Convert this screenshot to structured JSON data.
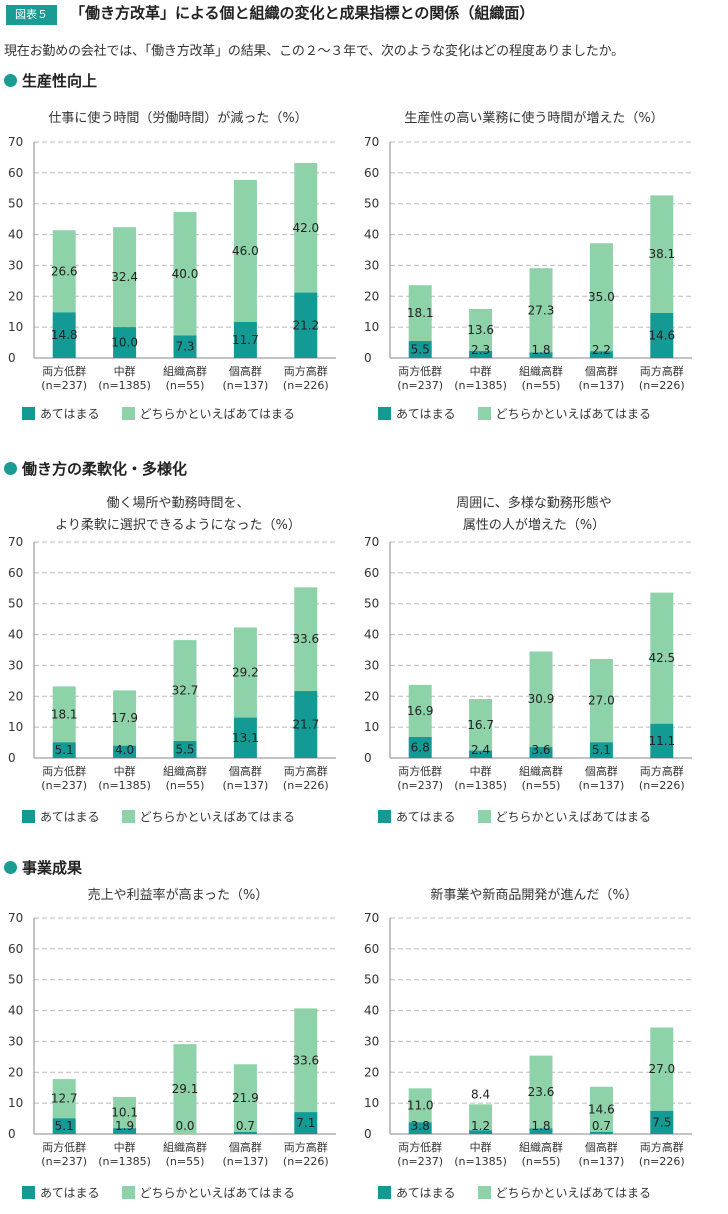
{
  "header": {
    "figure_label": "図表５",
    "title": "「働き方改革」による個と組織の変化と成果指標との関係（組織面）",
    "intro": "現在お勤めの会社では、「働き方改革」の結果、この２～３年で、次のような変化はどの程度ありましたか。"
  },
  "sections": [
    {
      "title": "生産性向上"
    },
    {
      "title": "働き方の柔軟化・多様化"
    },
    {
      "title": "事業成果"
    }
  ],
  "legend": {
    "strong": "あてはまる",
    "weak": "どちらかといえばあてはまる"
  },
  "colors": {
    "strong": "#139a95",
    "weak": "#8dd2a8",
    "accent": "#1a9b93",
    "grid": "#bbbbbb"
  },
  "chart_data": [
    {
      "type": "bar",
      "stacked": true,
      "title_lines": [
        "仕事に使う時間（労働時間）が減った（%）"
      ],
      "categories": [
        "両方低群",
        "中群",
        "組織高群",
        "個高群",
        "両方高群"
      ],
      "category_n": [
        "(n=237)",
        "(n=1385)",
        "(n=55)",
        "(n=137)",
        "(n=226)"
      ],
      "ylim": [
        0,
        70
      ],
      "yticks": [
        0,
        10,
        20,
        30,
        40,
        50,
        60,
        70
      ],
      "grid": true,
      "series": [
        {
          "name": "あてはまる",
          "values": [
            14.8,
            10.0,
            7.3,
            11.7,
            21.2
          ]
        },
        {
          "name": "どちらかといえばあてはまる",
          "values": [
            26.6,
            32.4,
            40.0,
            46.0,
            42.0
          ]
        }
      ],
      "value_labels": [
        [
          "14.8",
          "10.0",
          "7.3",
          "11.7",
          "21.2"
        ],
        [
          "26.6",
          "32.4",
          "40.0",
          "46.0",
          "42.0"
        ]
      ]
    },
    {
      "type": "bar",
      "stacked": true,
      "title_lines": [
        "生産性の高い業務に使う時間が増えた（%）"
      ],
      "categories": [
        "両方低群",
        "中群",
        "組織高群",
        "個高群",
        "両方高群"
      ],
      "category_n": [
        "(n=237)",
        "(n=1385)",
        "(n=55)",
        "(n=137)",
        "(n=226)"
      ],
      "ylim": [
        0,
        70
      ],
      "yticks": [
        0,
        10,
        20,
        30,
        40,
        50,
        60,
        70
      ],
      "grid": true,
      "series": [
        {
          "name": "あてはまる",
          "values": [
            5.5,
            2.3,
            1.8,
            2.2,
            14.6
          ]
        },
        {
          "name": "どちらかといえばあてはまる",
          "values": [
            18.1,
            13.6,
            27.3,
            35.0,
            38.1
          ]
        }
      ],
      "value_labels": [
        [
          "5.5",
          "2.3",
          "1.8",
          "2.2",
          "14.6"
        ],
        [
          "18.1",
          "13.6",
          "27.3",
          "35.0",
          "38.1"
        ]
      ]
    },
    {
      "type": "bar",
      "stacked": true,
      "title_lines": [
        "働く場所や勤務時間を、",
        "より柔軟に選択できるようになった（%）"
      ],
      "categories": [
        "両方低群",
        "中群",
        "組織高群",
        "個高群",
        "両方高群"
      ],
      "category_n": [
        "(n=237)",
        "(n=1385)",
        "(n=55)",
        "(n=137)",
        "(n=226)"
      ],
      "ylim": [
        0,
        70
      ],
      "yticks": [
        0,
        10,
        20,
        30,
        40,
        50,
        60,
        70
      ],
      "grid": true,
      "series": [
        {
          "name": "あてはまる",
          "values": [
            5.1,
            4.0,
            5.5,
            13.1,
            21.7
          ]
        },
        {
          "name": "どちらかといえばあてはまる",
          "values": [
            18.1,
            17.9,
            32.7,
            29.2,
            33.6
          ]
        }
      ],
      "value_labels": [
        [
          "5.1",
          "4.0",
          "5.5",
          "13.1",
          "21.7"
        ],
        [
          "18.1",
          "17.9",
          "32.7",
          "29.2",
          "33.6"
        ]
      ]
    },
    {
      "type": "bar",
      "stacked": true,
      "title_lines": [
        "周囲に、多様な勤務形態や",
        "属性の人が増えた（%）"
      ],
      "categories": [
        "両方低群",
        "中群",
        "組織高群",
        "個高群",
        "両方高群"
      ],
      "category_n": [
        "(n=237)",
        "(n=1385)",
        "(n=55)",
        "(n=137)",
        "(n=226)"
      ],
      "ylim": [
        0,
        70
      ],
      "yticks": [
        0,
        10,
        20,
        30,
        40,
        50,
        60,
        70
      ],
      "grid": true,
      "series": [
        {
          "name": "あてはまる",
          "values": [
            6.8,
            2.4,
            3.6,
            5.1,
            11.1
          ]
        },
        {
          "name": "どちらかといえばあてはまる",
          "values": [
            16.9,
            16.7,
            30.9,
            27.0,
            42.5
          ]
        }
      ],
      "value_labels": [
        [
          "6.8",
          "2.4",
          "3.6",
          "5.1",
          "11.1"
        ],
        [
          "16.9",
          "16.7",
          "30.9",
          "27.0",
          "42.5"
        ]
      ]
    },
    {
      "type": "bar",
      "stacked": true,
      "title_lines": [
        "売上や利益率が高まった（%）"
      ],
      "categories": [
        "両方低群",
        "中群",
        "組織高群",
        "個高群",
        "両方高群"
      ],
      "category_n": [
        "(n=237)",
        "(n=1385)",
        "(n=55)",
        "(n=137)",
        "(n=226)"
      ],
      "ylim": [
        0,
        70
      ],
      "yticks": [
        0,
        10,
        20,
        30,
        40,
        50,
        60,
        70
      ],
      "grid": true,
      "series": [
        {
          "name": "あてはまる",
          "values": [
            5.1,
            1.9,
            0.0,
            0.7,
            7.1
          ]
        },
        {
          "name": "どちらかといえばあてはまる",
          "values": [
            12.7,
            10.1,
            29.1,
            21.9,
            33.6
          ]
        }
      ],
      "value_labels": [
        [
          "5.1",
          "1.9",
          "0.0",
          "0.7",
          "7.1"
        ],
        [
          "12.7",
          "10.1",
          "29.1",
          "21.9",
          "33.6"
        ]
      ]
    },
    {
      "type": "bar",
      "stacked": true,
      "title_lines": [
        "新事業や新商品開発が進んだ（%）"
      ],
      "categories": [
        "両方低群",
        "中群",
        "組織高群",
        "個高群",
        "両方高群"
      ],
      "category_n": [
        "(n=237)",
        "(n=1385)",
        "(n=55)",
        "(n=137)",
        "(n=226)"
      ],
      "ylim": [
        0,
        70
      ],
      "yticks": [
        0,
        10,
        20,
        30,
        40,
        50,
        60,
        70
      ],
      "grid": true,
      "series": [
        {
          "name": "あてはまる",
          "values": [
            3.8,
            1.2,
            1.8,
            0.7,
            7.5
          ]
        },
        {
          "name": "どちらかといえばあてはまる",
          "values": [
            11.0,
            8.4,
            23.6,
            14.6,
            27.0
          ]
        }
      ],
      "value_labels": [
        [
          "3.8",
          "1.2",
          "1.8",
          "0.7",
          "7.5"
        ],
        [
          "11.0",
          "8.4",
          "23.6",
          "14.6",
          "27.0"
        ]
      ]
    }
  ]
}
